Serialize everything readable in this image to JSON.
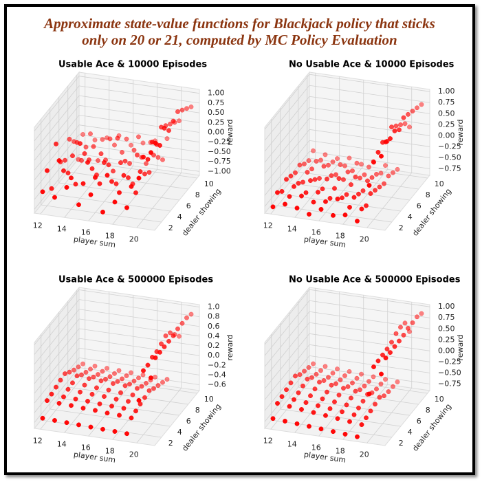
{
  "title": [
    "Approximate state-value functions for Blackjack policy that sticks",
    "only on 20 or 21, computed by MC Policy Evaluation"
  ],
  "chart_data": [
    {
      "type": "scatter3d",
      "title": "Usable Ace & 10000 Episodes",
      "xlabel": "player sum",
      "ylabel": "dealer showing",
      "zlabel": "reward",
      "color": "#ff0000",
      "x": [
        12,
        13,
        14,
        15,
        16,
        17,
        18,
        19,
        20,
        21
      ],
      "y": [
        1,
        2,
        3,
        4,
        5,
        6,
        7,
        8,
        9,
        10
      ],
      "values": [
        [
          -0.6,
          -0.2,
          -0.8,
          0.2,
          -0.4,
          -0.5,
          -0.1,
          -0.3,
          -0.9,
          -0.4
        ],
        [
          -0.7,
          0.1,
          -0.3,
          -0.5,
          -0.2,
          0.0,
          -0.6,
          -0.4,
          -0.2,
          -0.5
        ],
        [
          -0.4,
          -0.3,
          -0.6,
          0.3,
          -0.1,
          -0.4,
          -0.2,
          -0.7,
          -0.3,
          -0.4
        ],
        [
          -0.8,
          -0.4,
          0.0,
          -0.3,
          -0.6,
          -0.2,
          -0.5,
          -0.1,
          -0.4,
          -0.3
        ],
        [
          -0.5,
          -0.2,
          -0.5,
          -0.1,
          -0.3,
          -0.6,
          0.1,
          -0.4,
          -0.2,
          -0.5
        ],
        [
          -0.9,
          -0.1,
          -0.4,
          -0.6,
          -0.2,
          -0.3,
          -0.5,
          -0.3,
          -0.1,
          -0.4
        ],
        [
          -0.6,
          -0.5,
          -0.2,
          -0.4,
          -0.7,
          -0.1,
          -0.3,
          -0.6,
          -0.2,
          -0.3
        ],
        [
          -0.7,
          -0.3,
          -0.6,
          -0.2,
          -0.4,
          -0.5,
          -0.2,
          -0.4,
          -0.6,
          -0.2
        ],
        [
          0.1,
          0.5,
          0.3,
          0.6,
          0.4,
          0.7,
          0.6,
          0.5,
          0.4,
          0.3
        ],
        [
          0.8,
          0.9,
          0.7,
          1.0,
          0.8,
          0.9,
          1.0,
          0.9,
          0.8,
          0.7
        ]
      ],
      "xlim": [
        11.5,
        21.5
      ],
      "ylim": [
        0.5,
        10.5
      ],
      "zlim": [
        -1.1,
        1.1
      ],
      "xticks": [
        12,
        14,
        16,
        18,
        20
      ],
      "yticks": [
        2,
        4,
        6,
        8,
        10
      ],
      "zticks": [
        {
          "value": -1,
          "label": "−1.00"
        },
        {
          "value": -0.75,
          "label": "−0.75"
        },
        {
          "value": -0.5,
          "label": "−0.50"
        },
        {
          "value": -0.25,
          "label": "−0.25"
        },
        {
          "value": 0,
          "label": "0.00"
        },
        0.25,
        {
          "value": 0.5,
          "label": "0.50"
        },
        0.75,
        {
          "value": 1,
          "label": "1.00"
        }
      ]
    },
    {
      "type": "scatter3d",
      "title": "No Usable Ace & 10000 Episodes",
      "xlabel": "player sum",
      "ylabel": "dealer showing",
      "zlabel": "reward",
      "color": "#ff0000",
      "x": [
        12,
        13,
        14,
        15,
        16,
        17,
        18,
        19,
        20,
        21
      ],
      "y": [
        1,
        2,
        3,
        4,
        5,
        6,
        7,
        8,
        9,
        10
      ],
      "values": [
        [
          -0.8,
          -0.6,
          -0.7,
          -0.55,
          -0.6,
          -0.65,
          -0.6,
          -0.7,
          -0.75,
          -0.65
        ],
        [
          -0.7,
          -0.65,
          -0.55,
          -0.6,
          -0.7,
          -0.6,
          -0.65,
          -0.6,
          -0.7,
          -0.7
        ],
        [
          -0.75,
          -0.6,
          -0.65,
          -0.5,
          -0.6,
          -0.7,
          -0.55,
          -0.65,
          -0.7,
          -0.75
        ],
        [
          -0.85,
          -0.7,
          -0.6,
          -0.65,
          -0.55,
          -0.6,
          -0.7,
          -0.6,
          -0.75,
          -0.7
        ],
        [
          -0.7,
          -0.65,
          -0.7,
          -0.6,
          -0.5,
          -0.65,
          -0.6,
          -0.7,
          -0.65,
          -0.8
        ],
        [
          -0.8,
          -0.55,
          -0.65,
          -0.7,
          -0.6,
          -0.55,
          -0.7,
          -0.75,
          -0.7,
          -0.7
        ],
        [
          -0.75,
          -0.7,
          -0.6,
          -0.65,
          -0.7,
          -0.6,
          -0.65,
          -0.7,
          -0.8,
          -0.75
        ],
        [
          -0.85,
          -0.7,
          -0.75,
          -0.6,
          -0.65,
          -0.7,
          -0.75,
          -0.7,
          -0.75,
          -0.8
        ],
        [
          0.0,
          0.4,
          0.5,
          0.6,
          0.5,
          0.7,
          0.6,
          0.5,
          0.4,
          0.2
        ],
        [
          0.7,
          0.9,
          0.85,
          0.9,
          0.8,
          0.95,
          0.9,
          0.85,
          0.8,
          0.75
        ]
      ],
      "xlim": [
        11.5,
        21.5
      ],
      "ylim": [
        0.5,
        10.5
      ],
      "zlim": [
        -0.9,
        1.05
      ],
      "xticks": [
        12,
        14,
        16,
        18,
        20
      ],
      "yticks": [
        2,
        4,
        6,
        8,
        10
      ],
      "zticks": [
        {
          "value": -0.75,
          "label": "−0.75"
        },
        {
          "value": -0.5,
          "label": "−0.50"
        },
        {
          "value": -0.25,
          "label": "−0.25"
        },
        {
          "value": 0,
          "label": "0.00"
        },
        0.25,
        {
          "value": 0.5,
          "label": "0.50"
        },
        0.75,
        {
          "value": 1,
          "label": "1.00"
        }
      ]
    },
    {
      "type": "scatter3d",
      "title": "Usable Ace & 500000 Episodes",
      "xlabel": "player sum",
      "ylabel": "dealer showing",
      "zlabel": "reward",
      "color": "#ff0000",
      "x": [
        12,
        13,
        14,
        15,
        16,
        17,
        18,
        19,
        20,
        21
      ],
      "y": [
        1,
        2,
        3,
        4,
        5,
        6,
        7,
        8,
        9,
        10
      ],
      "values": [
        [
          -0.55,
          -0.3,
          -0.28,
          -0.25,
          -0.22,
          -0.2,
          -0.28,
          -0.35,
          -0.4,
          -0.45
        ],
        [
          -0.56,
          -0.32,
          -0.3,
          -0.26,
          -0.24,
          -0.21,
          -0.3,
          -0.36,
          -0.41,
          -0.46
        ],
        [
          -0.57,
          -0.33,
          -0.31,
          -0.28,
          -0.25,
          -0.23,
          -0.31,
          -0.37,
          -0.42,
          -0.47
        ],
        [
          -0.58,
          -0.35,
          -0.32,
          -0.29,
          -0.27,
          -0.24,
          -0.32,
          -0.38,
          -0.43,
          -0.48
        ],
        [
          -0.59,
          -0.36,
          -0.34,
          -0.3,
          -0.28,
          -0.26,
          -0.33,
          -0.39,
          -0.44,
          -0.49
        ],
        [
          -0.6,
          -0.38,
          -0.35,
          -0.32,
          -0.3,
          -0.27,
          -0.35,
          -0.4,
          -0.45,
          -0.5
        ],
        [
          -0.61,
          -0.39,
          -0.36,
          -0.33,
          -0.31,
          -0.29,
          -0.36,
          -0.41,
          -0.46,
          -0.51
        ],
        [
          -0.62,
          -0.41,
          -0.38,
          -0.35,
          -0.33,
          -0.3,
          -0.37,
          -0.42,
          -0.47,
          -0.52
        ],
        [
          0.1,
          0.6,
          0.6,
          0.65,
          0.65,
          0.7,
          0.75,
          0.7,
          0.55,
          0.4
        ],
        [
          0.6,
          0.9,
          0.9,
          0.9,
          0.9,
          0.9,
          0.93,
          0.93,
          0.93,
          0.89
        ]
      ],
      "xlim": [
        11.5,
        21.5
      ],
      "ylim": [
        0.5,
        10.5
      ],
      "zlim": [
        -0.72,
        1.05
      ],
      "xticks": [
        12,
        14,
        16,
        18,
        20
      ],
      "yticks": [
        2,
        4,
        6,
        8,
        10
      ],
      "zticks": [
        {
          "value": -0.6,
          "label": "−0.6"
        },
        {
          "value": -0.4,
          "label": "−0.4"
        },
        {
          "value": -0.2,
          "label": "−0.2"
        },
        {
          "value": 0,
          "label": "0.0"
        },
        0.2,
        0.4,
        0.6,
        0.8,
        {
          "value": 1,
          "label": "1.0"
        }
      ]
    },
    {
      "type": "scatter3d",
      "title": "No Usable Ace & 500000 Episodes",
      "xlabel": "player sum",
      "ylabel": "dealer showing",
      "zlabel": "reward",
      "color": "#ff0000",
      "x": [
        12,
        13,
        14,
        15,
        16,
        17,
        18,
        19,
        20,
        21
      ],
      "y": [
        1,
        2,
        3,
        4,
        5,
        6,
        7,
        8,
        9,
        10
      ],
      "values": [
        [
          -0.72,
          -0.5,
          -0.47,
          -0.44,
          -0.41,
          -0.38,
          -0.47,
          -0.52,
          -0.56,
          -0.6
        ],
        [
          -0.74,
          -0.53,
          -0.5,
          -0.47,
          -0.44,
          -0.41,
          -0.5,
          -0.55,
          -0.59,
          -0.62
        ],
        [
          -0.76,
          -0.56,
          -0.53,
          -0.5,
          -0.47,
          -0.44,
          -0.53,
          -0.58,
          -0.61,
          -0.64
        ],
        [
          -0.78,
          -0.59,
          -0.56,
          -0.53,
          -0.5,
          -0.47,
          -0.56,
          -0.6,
          -0.63,
          -0.66
        ],
        [
          -0.8,
          -0.62,
          -0.59,
          -0.56,
          -0.53,
          -0.5,
          -0.59,
          -0.63,
          -0.65,
          -0.68
        ],
        [
          -0.82,
          -0.65,
          -0.62,
          -0.59,
          -0.56,
          -0.53,
          -0.62,
          -0.66,
          -0.68,
          -0.7
        ],
        [
          -0.84,
          -0.68,
          -0.65,
          -0.62,
          -0.59,
          -0.56,
          -0.65,
          -0.69,
          -0.7,
          -0.72
        ],
        [
          -0.86,
          -0.71,
          -0.68,
          -0.65,
          -0.62,
          -0.59,
          -0.68,
          -0.71,
          -0.72,
          -0.74
        ],
        [
          0.15,
          0.64,
          0.65,
          0.66,
          0.67,
          0.7,
          0.77,
          0.79,
          0.76,
          0.44
        ],
        [
          0.64,
          0.88,
          0.88,
          0.89,
          0.89,
          0.9,
          0.93,
          0.93,
          0.94,
          0.89
        ]
      ],
      "xlim": [
        11.5,
        21.5
      ],
      "ylim": [
        0.5,
        10.5
      ],
      "zlim": [
        -0.9,
        1.05
      ],
      "xticks": [
        12,
        14,
        16,
        18,
        20
      ],
      "yticks": [
        2,
        4,
        6,
        8,
        10
      ],
      "zticks": [
        {
          "value": -0.75,
          "label": "−0.75"
        },
        {
          "value": -0.5,
          "label": "−0.50"
        },
        {
          "value": -0.25,
          "label": "−0.25"
        },
        {
          "value": 0,
          "label": "0.00"
        },
        0.25,
        {
          "value": 0.5,
          "label": "0.50"
        },
        0.75,
        {
          "value": 1,
          "label": "1.00"
        }
      ]
    }
  ]
}
